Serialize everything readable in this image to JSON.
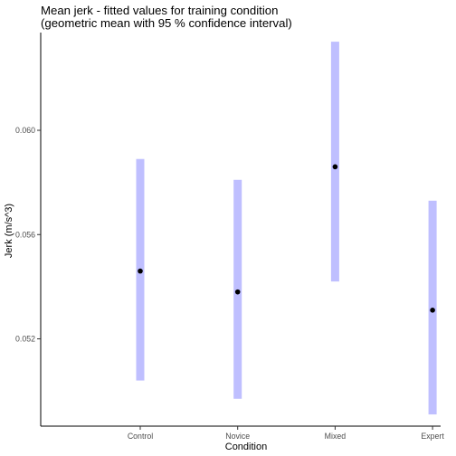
{
  "chart_data": {
    "type": "errorbar",
    "title_line1": "Mean jerk - fitted values for training condition",
    "title_line2": "(geometric mean with 95 % confidence interval)",
    "xlabel": "Condition",
    "ylabel": "Jerk (m/s^3)",
    "categories": [
      "Control",
      "Novice",
      "Mixed",
      "Expert"
    ],
    "values": [
      0.0546,
      0.0538,
      0.0586,
      0.0531
    ],
    "lower": [
      0.0504,
      0.0497,
      0.0542,
      0.0491
    ],
    "upper": [
      0.0589,
      0.0581,
      0.0634,
      0.0573
    ],
    "yticks": [
      0.052,
      0.056,
      0.06
    ],
    "ytick_labels": [
      "0.052",
      "0.056",
      "0.060"
    ],
    "ylim": [
      0.04865,
      0.06375
    ],
    "grid": false,
    "interval_color": "#bfbfff",
    "point_color": "#000000"
  }
}
